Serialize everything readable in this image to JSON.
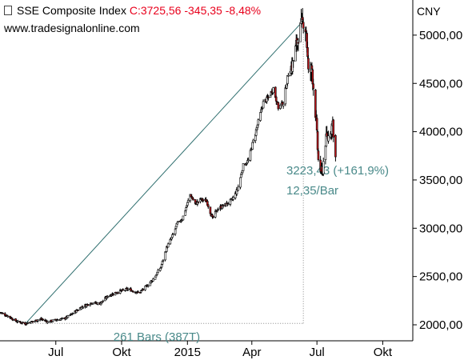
{
  "header": {
    "instrument": "SSE Composite Index",
    "quote": "C:3725,56 -345,35 -8,48%",
    "source": "www.tradesignalonline.com",
    "currency": "CNY"
  },
  "colors": {
    "up": "#ffffff",
    "down": "#c0161c",
    "price_text": "#e8001c",
    "annotation": "#4a8a8a",
    "trendline": "#2f6f6f"
  },
  "chart_data": {
    "type": "candlestick",
    "title": "SSE Composite Index",
    "xlabel": "",
    "ylabel": "CNY",
    "y_axis_position": "right",
    "ylim": [
      1860,
      5300
    ],
    "y_ticks": [
      "5000,00",
      "4500,00",
      "4000,00",
      "3500,00",
      "3000,00",
      "2500,00",
      "2000,00"
    ],
    "y_tick_values": [
      5000,
      4500,
      4000,
      3500,
      3000,
      2500,
      2000
    ],
    "x_ticks": [
      "Jul",
      "Okt",
      "2015",
      "Apr",
      "Jul",
      "Okt"
    ],
    "x_tick_dates": [
      "2014-07-01",
      "2014-10-01",
      "2015-01-01",
      "2015-04-01",
      "2015-07-01",
      "2015-10-01"
    ],
    "xlim": [
      "2014-04-14",
      "2015-11-12"
    ],
    "close_path": [
      [
        "2014-04-14",
        2130
      ],
      [
        "2014-04-25",
        2090
      ],
      [
        "2014-05-09",
        2030
      ],
      [
        "2014-05-20",
        2015
      ],
      [
        "2014-05-30",
        2035
      ],
      [
        "2014-06-10",
        2060
      ],
      [
        "2014-06-20",
        2030
      ],
      [
        "2014-07-01",
        2050
      ],
      [
        "2014-07-15",
        2070
      ],
      [
        "2014-07-25",
        2120
      ],
      [
        "2014-08-05",
        2180
      ],
      [
        "2014-08-20",
        2230
      ],
      [
        "2014-09-01",
        2220
      ],
      [
        "2014-09-12",
        2300
      ],
      [
        "2014-09-25",
        2340
      ],
      [
        "2014-10-10",
        2370
      ],
      [
        "2014-10-25",
        2330
      ],
      [
        "2014-11-05",
        2400
      ],
      [
        "2014-11-15",
        2480
      ],
      [
        "2014-11-25",
        2600
      ],
      [
        "2014-12-03",
        2800
      ],
      [
        "2014-12-10",
        2900
      ],
      [
        "2014-12-18",
        3050
      ],
      [
        "2014-12-25",
        3100
      ],
      [
        "2015-01-05",
        3350
      ],
      [
        "2015-01-12",
        3250
      ],
      [
        "2015-01-20",
        3300
      ],
      [
        "2015-01-28",
        3280
      ],
      [
        "2015-02-05",
        3100
      ],
      [
        "2015-02-12",
        3200
      ],
      [
        "2015-02-25",
        3250
      ],
      [
        "2015-03-05",
        3300
      ],
      [
        "2015-03-12",
        3400
      ],
      [
        "2015-03-20",
        3650
      ],
      [
        "2015-03-27",
        3700
      ],
      [
        "2015-04-03",
        3900
      ],
      [
        "2015-04-10",
        4100
      ],
      [
        "2015-04-17",
        4300
      ],
      [
        "2015-04-24",
        4350
      ],
      [
        "2015-05-01",
        4450
      ],
      [
        "2015-05-08",
        4250
      ],
      [
        "2015-05-15",
        4300
      ],
      [
        "2015-05-22",
        4600
      ],
      [
        "2015-05-28",
        4700
      ],
      [
        "2015-06-05",
        5000
      ],
      [
        "2015-06-12",
        5150
      ],
      [
        "2015-06-16",
        5050
      ],
      [
        "2015-06-19",
        4600
      ],
      [
        "2015-06-24",
        4650
      ],
      [
        "2015-06-29",
        4200
      ],
      [
        "2015-07-03",
        3700
      ],
      [
        "2015-07-08",
        3550
      ],
      [
        "2015-07-13",
        3900
      ],
      [
        "2015-07-17",
        3950
      ],
      [
        "2015-07-23",
        4100
      ],
      [
        "2015-07-27",
        3725
      ]
    ],
    "annotations": {
      "trendline": [
        [
          "2014-05-20",
          2015
        ],
        [
          "2015-06-12",
          5150
        ]
      ],
      "change_label": "3223,43 (+161,9%)",
      "rate_label": "12,35/Bar",
      "bars_label": "261 Bars (387T)"
    }
  }
}
